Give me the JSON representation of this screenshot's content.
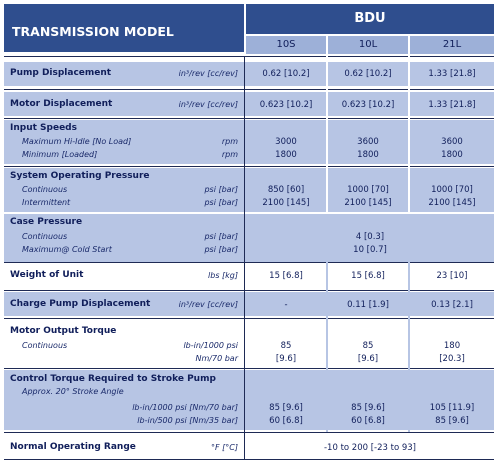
{
  "header": {
    "model_label": "TRANSMISSION MODEL",
    "series_label": "BDU",
    "columns": [
      "10S",
      "10L",
      "21L"
    ]
  },
  "rows": {
    "pump_disp": {
      "label": "Pump Displacement",
      "unit": "in³/rev [cc/rev]",
      "values": [
        "0.62 [10.2]",
        "0.62 [10.2]",
        "1.33 [21.8]"
      ]
    },
    "motor_disp": {
      "label": "Motor Displacement",
      "unit": "in³/rev [cc/rev]",
      "values": [
        "0.623 [10.2]",
        "0.623 [10.2]",
        "1.33 [21.8]"
      ]
    },
    "input_speeds": {
      "label": "Input Speeds",
      "sub1": "Maximum Hi-Idle [No Load]",
      "sub1_unit": "rpm",
      "sub1_values": [
        "3000",
        "3600",
        "3600"
      ],
      "sub2": "Minimum [Loaded]",
      "sub2_unit": "rpm",
      "sub2_values": [
        "1800",
        "1800",
        "1800"
      ]
    },
    "sys_pressure": {
      "label": "System Operating Pressure",
      "sub1": "Continuous",
      "sub1_unit": "psi [bar]",
      "sub1_values": [
        "850 [60]",
        "1000 [70]",
        "1000 [70]"
      ],
      "sub2": "Intermittent",
      "sub2_unit": "psi [bar]",
      "sub2_values": [
        "2100 [145]",
        "2100 [145]",
        "2100 [145]"
      ]
    },
    "case_pressure": {
      "label": "Case Pressure",
      "sub1": "Continuous",
      "sub1_unit": "psi [bar]",
      "sub1_value": "4 [0.3]",
      "sub2": "Maximum@ Cold Start",
      "sub2_unit": "psi [bar]",
      "sub2_value": "10 [0.7]"
    },
    "weight": {
      "label": "Weight of Unit",
      "unit": "lbs [kg]",
      "values": [
        "15 [6.8]",
        "15 [6.8]",
        "23 [10]"
      ]
    },
    "charge_pump": {
      "label": "Charge Pump Displacement",
      "unit": "in³/rev [cc/rev]",
      "values": [
        "-",
        "0.11 [1.9]",
        "0.13 [2.1]"
      ]
    },
    "motor_torque": {
      "label": "Motor Output Torque",
      "sub1": "Continuous",
      "sub1_unit": "lb-in/1000 psi",
      "sub1_values": [
        "85",
        "85",
        "180"
      ],
      "sub2_unit": "Nm/70 bar",
      "sub2_values": [
        "[9.6]",
        "[9.6]",
        "[20.3]"
      ]
    },
    "control_torque": {
      "label": "Control Torque Required to Stroke Pump",
      "sub1": "Approx. 20° Stroke Angle",
      "sub2_unit": "lb-in/1000 psi [Nm/70 bar]",
      "sub2_values": [
        "85 [9.6]",
        "85 [9.6]",
        "105 [11.9]"
      ],
      "sub3_unit": "lb-in/500 psi [Nm/35 bar]",
      "sub3_values": [
        "60 [6.8]",
        "60 [6.8]",
        "85 [9.6]"
      ]
    },
    "normal_range": {
      "label": "Normal Operating Range",
      "unit": "°F [°C]",
      "value": "-10 to 200 [-23 to 93]"
    }
  },
  "colors": {
    "header_blue": "#2f4e8e",
    "header_light": "#9db0d8",
    "band_blue": "#b7c5e4",
    "text_navy": "#101e5a"
  }
}
